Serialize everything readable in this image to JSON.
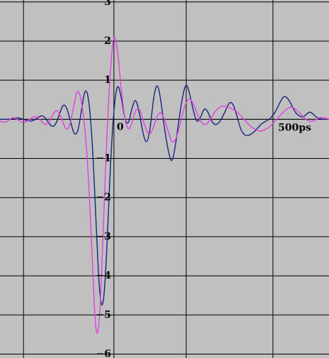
{
  "chart_data": {
    "type": "line",
    "title": "",
    "xlabel": "",
    "ylabel": "",
    "x_unit": "ps",
    "xlim": [
      -315,
      595
    ],
    "ylim": [
      -6.1,
      3.05
    ],
    "x_gridlines": [
      -250,
      0,
      200,
      440
    ],
    "y_ticks": [
      {
        "value": 3,
        "label": "3"
      },
      {
        "value": 2,
        "label": "2"
      },
      {
        "value": 1,
        "label": "1"
      },
      {
        "value": 0,
        "label": "0"
      },
      {
        "value": -1,
        "label": "−1"
      },
      {
        "value": -2,
        "label": "−2"
      },
      {
        "value": -3,
        "label": "−3"
      },
      {
        "value": -4,
        "label": "−4"
      },
      {
        "value": -5,
        "label": "−5"
      },
      {
        "value": -6,
        "label": "−6"
      }
    ],
    "x_tick_labels": [
      {
        "value": 500,
        "label": "500ps"
      }
    ],
    "grid": true,
    "background_color": "#c0c0c0",
    "series": [
      {
        "color": "#1a237e",
        "x": [
          -315,
          -300,
          -290,
          -280,
          -270,
          -260,
          -250,
          -240,
          -230,
          -220,
          -210,
          -200,
          -190,
          -180,
          -170,
          -160,
          -150,
          -140,
          -130,
          -120,
          -110,
          -100,
          -90,
          -80,
          -70,
          -60,
          -50,
          -40,
          -30,
          -20,
          -10,
          0,
          10,
          20,
          30,
          40,
          50,
          60,
          70,
          80,
          90,
          100,
          110,
          120,
          130,
          140,
          150,
          160,
          170,
          180,
          190,
          200,
          210,
          220,
          230,
          240,
          250,
          260,
          270,
          280,
          290,
          300,
          310,
          320,
          330,
          340,
          350,
          360,
          370,
          380,
          390,
          400,
          410,
          420,
          430,
          440,
          450,
          460,
          470,
          480,
          490,
          500,
          510,
          520,
          530,
          540,
          550,
          560,
          570,
          580,
          595
        ],
        "y": [
          0,
          0,
          0,
          0.02,
          0.04,
          0.03,
          0,
          -0.03,
          -0.05,
          -0.02,
          0.05,
          0.1,
          0.05,
          -0.1,
          -0.2,
          -0.12,
          0.15,
          0.4,
          0.3,
          -0.05,
          -0.4,
          -0.35,
          0.2,
          0.8,
          0.6,
          -0.5,
          -2.5,
          -4.5,
          -4.9,
          -3.5,
          -1.2,
          0.3,
          0.95,
          0.6,
          0,
          -0.15,
          0.3,
          0.55,
          0.2,
          -0.35,
          -0.65,
          -0.3,
          0.6,
          0.95,
          0.5,
          -0.25,
          -0.8,
          -1.15,
          -0.7,
          0,
          0.6,
          0.95,
          0.65,
          0.2,
          -0.1,
          0.05,
          0.3,
          0.2,
          -0.05,
          -0.15,
          -0.1,
          0.05,
          0.25,
          0.45,
          0.4,
          0.1,
          -0.25,
          -0.4,
          -0.42,
          -0.38,
          -0.3,
          -0.2,
          -0.1,
          -0.05,
          0,
          0.1,
          0.25,
          0.45,
          0.6,
          0.55,
          0.4,
          0.2,
          0.1,
          0.05,
          0.1,
          0.2,
          0.15,
          0.05,
          0.02,
          0,
          0
        ]
      },
      {
        "color": "#e040e0",
        "x": [
          -315,
          -300,
          -290,
          -280,
          -270,
          -260,
          -250,
          -240,
          -230,
          -220,
          -210,
          -200,
          -190,
          -180,
          -170,
          -160,
          -150,
          -140,
          -130,
          -120,
          -110,
          -100,
          -90,
          -80,
          -70,
          -60,
          -50,
          -40,
          -30,
          -20,
          -10,
          0,
          10,
          20,
          30,
          40,
          50,
          60,
          70,
          80,
          90,
          100,
          110,
          120,
          130,
          140,
          150,
          160,
          170,
          180,
          190,
          200,
          210,
          220,
          230,
          240,
          250,
          260,
          270,
          280,
          290,
          300,
          310,
          320,
          330,
          340,
          350,
          360,
          370,
          380,
          390,
          400,
          410,
          420,
          430,
          440,
          450,
          460,
          470,
          480,
          490,
          500,
          510,
          520,
          530,
          540,
          550,
          560,
          570,
          580,
          595
        ],
        "y": [
          -0.05,
          -0.08,
          -0.02,
          0.05,
          0.02,
          -0.05,
          -0.08,
          -0.05,
          0.02,
          0.08,
          0.05,
          -0.05,
          -0.15,
          -0.08,
          0.1,
          0.25,
          0.15,
          -0.1,
          -0.3,
          -0.1,
          0.4,
          0.8,
          0.5,
          -0.2,
          -1.5,
          -3.5,
          -5.6,
          -5.3,
          -3.0,
          -0.5,
          1.3,
          2.25,
          1.8,
          0.8,
          0,
          -0.3,
          -0.1,
          0.25,
          0.3,
          0,
          -0.3,
          -0.4,
          -0.2,
          0.1,
          0.2,
          0,
          -0.3,
          -0.6,
          -0.55,
          -0.25,
          0.15,
          0.45,
          0.55,
          0.4,
          0.15,
          -0.05,
          -0.15,
          -0.1,
          0.05,
          0.2,
          0.3,
          0.35,
          0.33,
          0.3,
          0.25,
          0.2,
          0.1,
          0,
          -0.1,
          -0.2,
          -0.25,
          -0.3,
          -0.3,
          -0.25,
          -0.2,
          -0.1,
          0,
          0.1,
          0.2,
          0.28,
          0.32,
          0.28,
          0.2,
          0.1,
          0,
          -0.05,
          -0.05,
          0,
          0.05,
          0.05,
          0
        ]
      }
    ]
  }
}
